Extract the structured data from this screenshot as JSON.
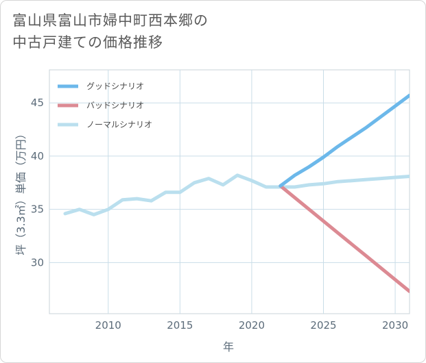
{
  "title_lines": [
    "富山県富山市婦中町西本郷の",
    "中古戸建ての価格推移"
  ],
  "chart_data": {
    "type": "line",
    "title": "富山県富山市婦中町西本郷の中古戸建ての価格推移",
    "xlabel": "年",
    "ylabel": "坪（3.3㎡）単価（万円）",
    "xlim": [
      2005.9,
      2031
    ],
    "ylim": [
      25.2,
      48.1
    ],
    "xticks": [
      2010,
      2015,
      2020,
      2025,
      2030
    ],
    "yticks": [
      30,
      35,
      40,
      45
    ],
    "grid": true,
    "legend_position": "top-left",
    "series": [
      {
        "name": "グッドシナリオ",
        "color": "#6cb8ea",
        "x": [
          2022,
          2023,
          2024,
          2025,
          2026,
          2027,
          2028,
          2029,
          2030,
          2031
        ],
        "y": [
          37.2,
          38.2,
          39.0,
          39.9,
          40.9,
          41.8,
          42.7,
          43.7,
          44.7,
          45.7
        ]
      },
      {
        "name": "バッドシナリオ",
        "color": "#dc8a93",
        "x": [
          2022,
          2023,
          2024,
          2025,
          2026,
          2027,
          2028,
          2029,
          2030,
          2031
        ],
        "y": [
          37.2,
          36.1,
          35.0,
          33.9,
          32.8,
          31.7,
          30.6,
          29.5,
          28.4,
          27.3
        ]
      },
      {
        "name": "ノーマルシナリオ",
        "color": "#badfee",
        "x": [
          2007,
          2008,
          2009,
          2010,
          2011,
          2012,
          2013,
          2014,
          2015,
          2016,
          2017,
          2018,
          2019,
          2020,
          2021,
          2022,
          2023,
          2024,
          2025,
          2026,
          2027,
          2028,
          2029,
          2030,
          2031
        ],
        "y": [
          34.6,
          35.0,
          34.5,
          35.0,
          35.9,
          36.0,
          35.8,
          36.6,
          36.6,
          37.5,
          37.9,
          37.3,
          38.2,
          37.7,
          37.1,
          37.1,
          37.1,
          37.3,
          37.4,
          37.6,
          37.7,
          37.8,
          37.9,
          38.0,
          38.1
        ]
      }
    ]
  }
}
